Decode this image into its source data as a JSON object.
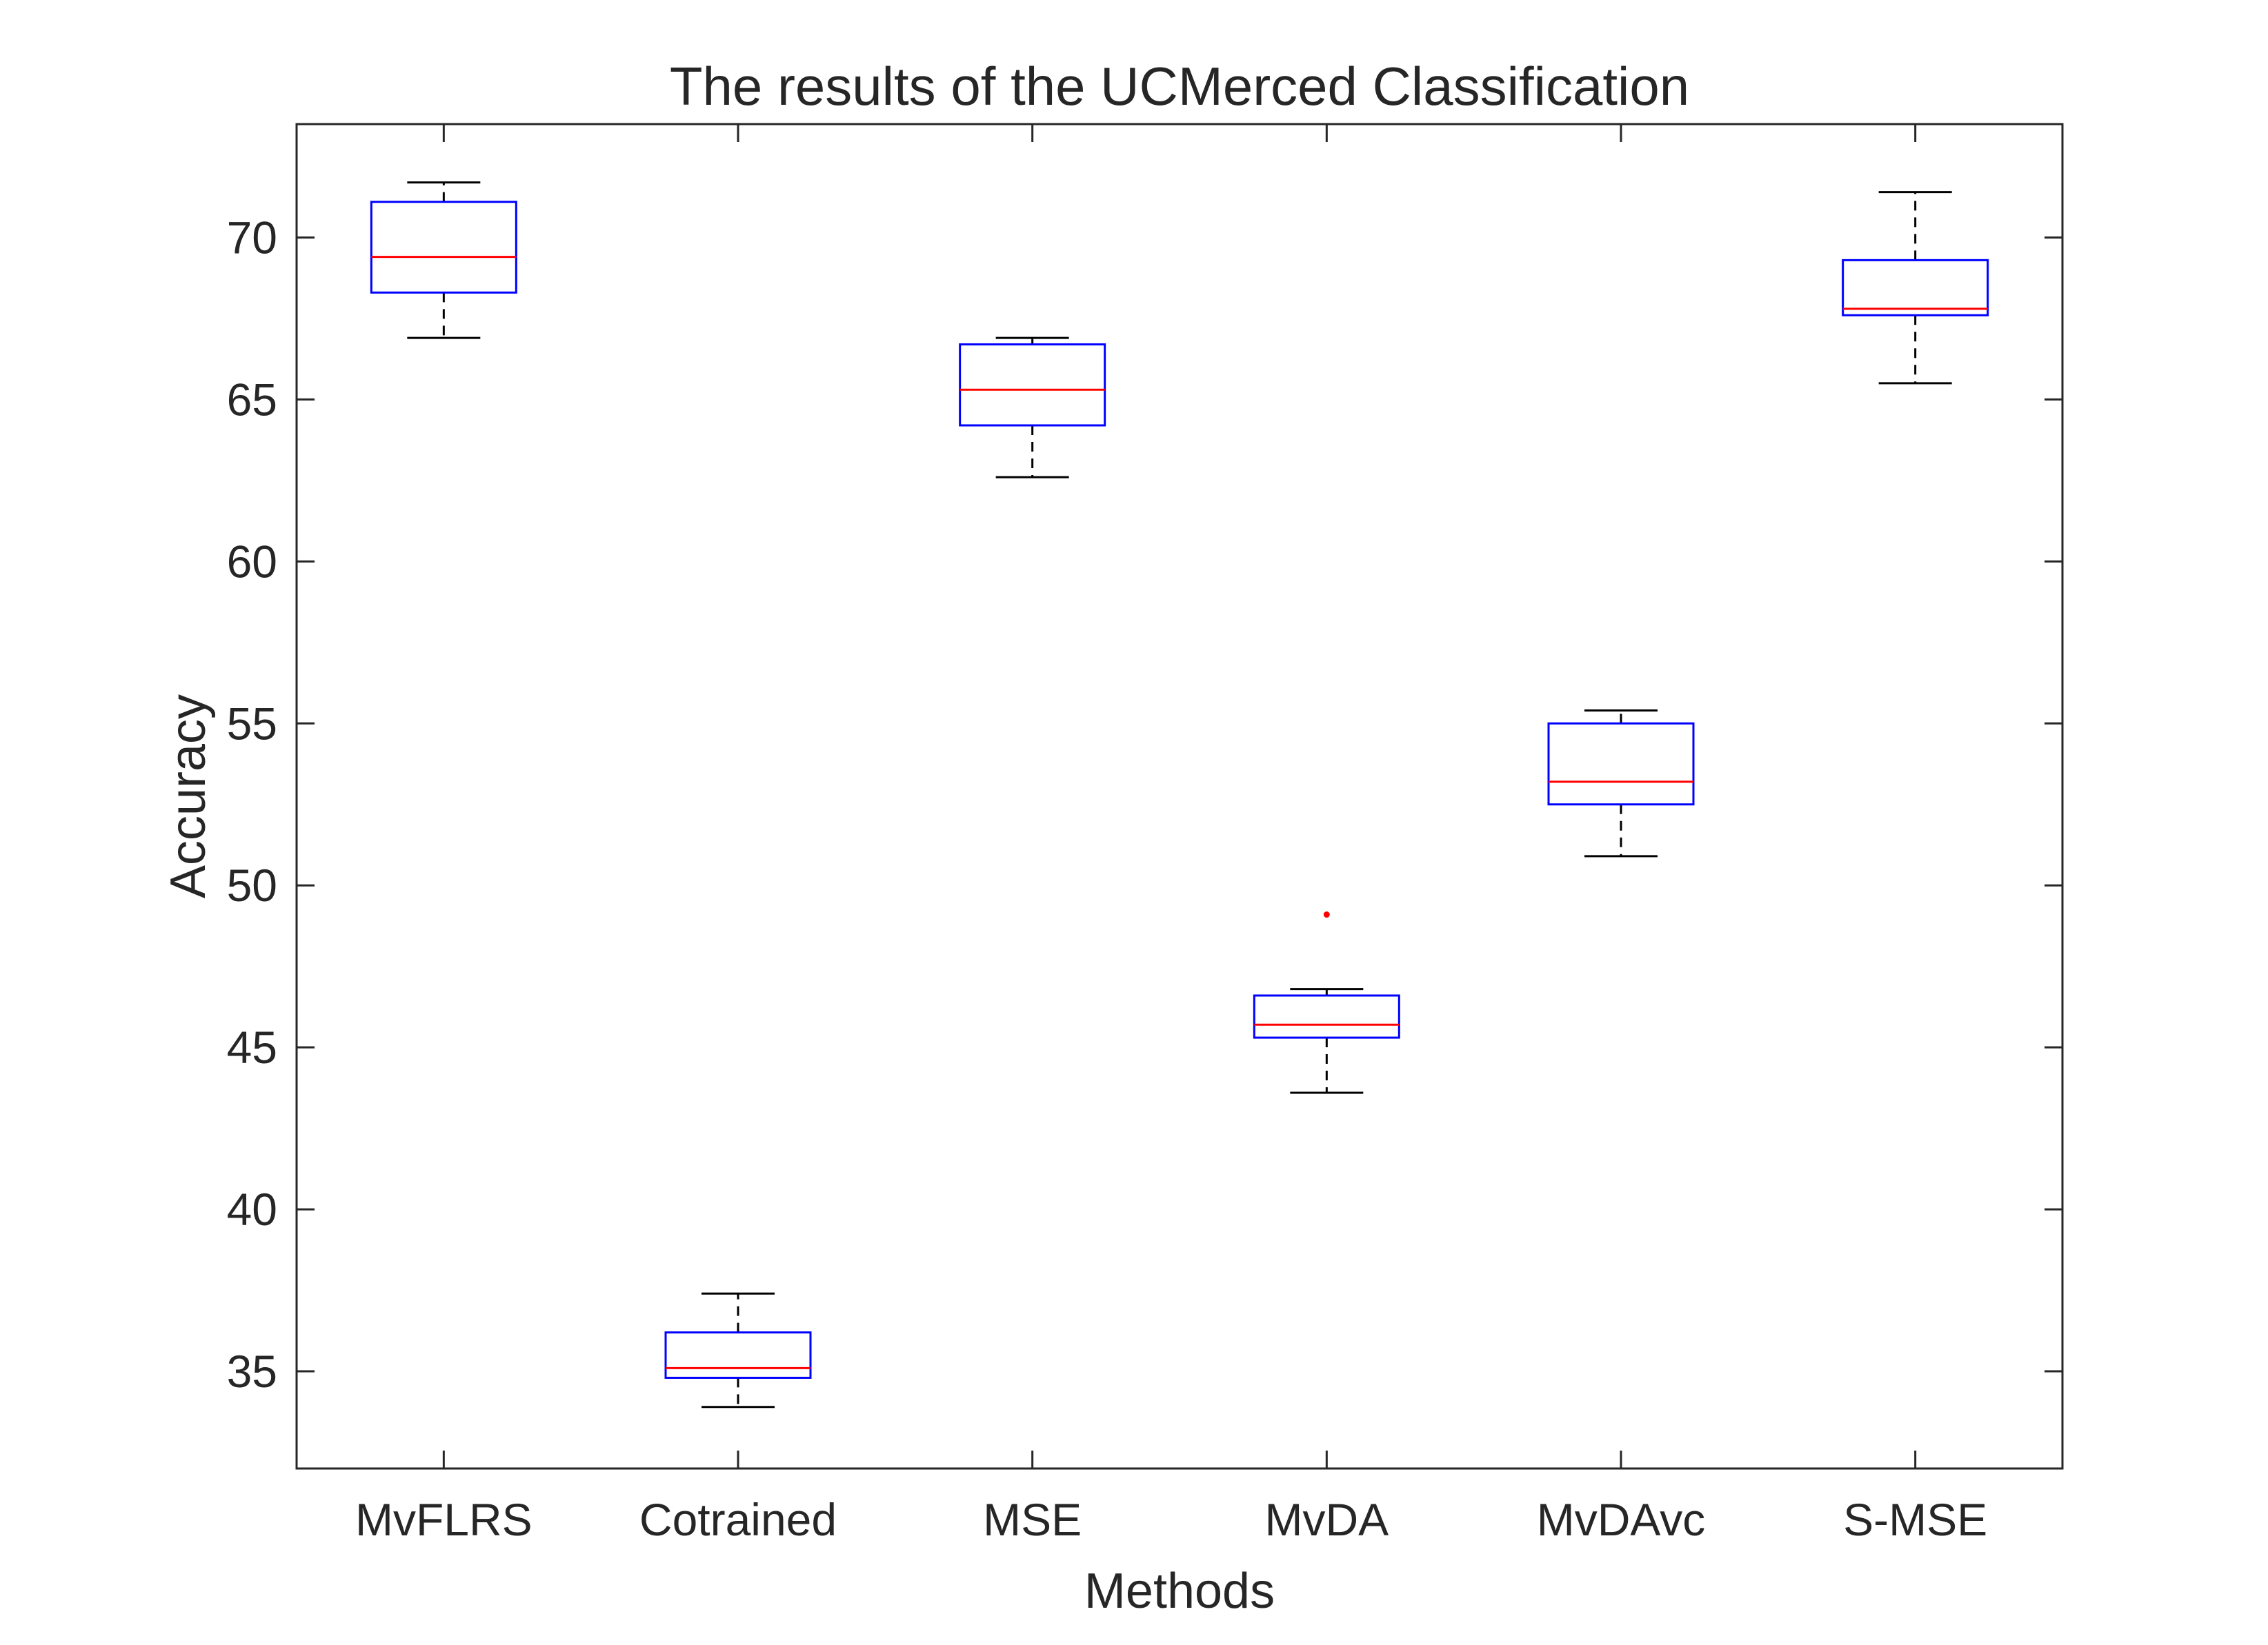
{
  "chart_data": {
    "type": "box",
    "title": "The results of the UCMerced Classification",
    "xlabel": "Methods",
    "ylabel": "Accuracy",
    "ylim": [
      32,
      73.5
    ],
    "yticks": [
      35,
      40,
      45,
      50,
      55,
      60,
      65,
      70
    ],
    "ytick_labels": [
      "35",
      "40",
      "45",
      "50",
      "55",
      "60",
      "65",
      "70"
    ],
    "grid": false,
    "categories": [
      "MvFLRS",
      "Cotrained",
      "MSE",
      "MvDA",
      "MvDAvc",
      "S-MSE"
    ],
    "boxes": [
      {
        "category": "MvFLRS",
        "whisker_low": 66.9,
        "q1": 68.3,
        "median": 69.4,
        "q3": 71.1,
        "whisker_high": 71.7,
        "outliers": []
      },
      {
        "category": "Cotrained",
        "whisker_low": 33.9,
        "q1": 34.8,
        "median": 35.1,
        "q3": 36.2,
        "whisker_high": 37.4,
        "outliers": []
      },
      {
        "category": "MSE",
        "whisker_low": 62.6,
        "q1": 64.2,
        "median": 65.3,
        "q3": 66.7,
        "whisker_high": 66.9,
        "outliers": []
      },
      {
        "category": "MvDA",
        "whisker_low": 43.6,
        "q1": 45.3,
        "median": 45.7,
        "q3": 46.6,
        "whisker_high": 46.8,
        "outliers": [
          49.1
        ]
      },
      {
        "category": "MvDAvc",
        "whisker_low": 50.9,
        "q1": 52.5,
        "median": 53.2,
        "q3": 55.0,
        "whisker_high": 55.4,
        "outliers": []
      },
      {
        "category": "S-MSE",
        "whisker_low": 65.5,
        "q1": 67.6,
        "median": 67.8,
        "q3": 69.3,
        "whisker_high": 71.4,
        "outliers": []
      }
    ],
    "colors": {
      "box": "#0000ff",
      "median": "#ff0000",
      "whisker": "#000000",
      "outlier": "#ff0000",
      "axis": "#262626"
    }
  }
}
